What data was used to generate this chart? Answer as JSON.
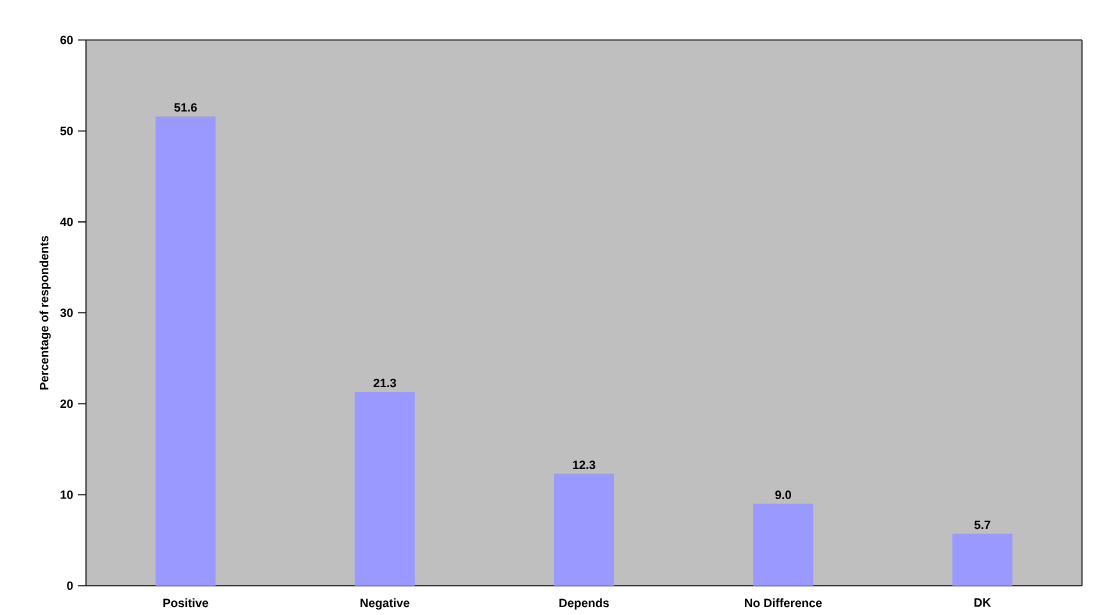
{
  "chart_data": {
    "type": "bar",
    "ylabel": "Percentage of respondents",
    "categories": [
      "Positive",
      "Negative",
      "Depends",
      "No Difference",
      "DK"
    ],
    "values": [
      51.6,
      21.3,
      12.3,
      9.0,
      5.7
    ],
    "value_labels": [
      "51.6",
      "21.3",
      "12.3",
      "9.0",
      "5.7"
    ],
    "color": "#9999ff",
    "ylim": [
      0,
      60
    ],
    "yticks": [
      0,
      10,
      20,
      30,
      40,
      50,
      60
    ],
    "grid": false
  }
}
